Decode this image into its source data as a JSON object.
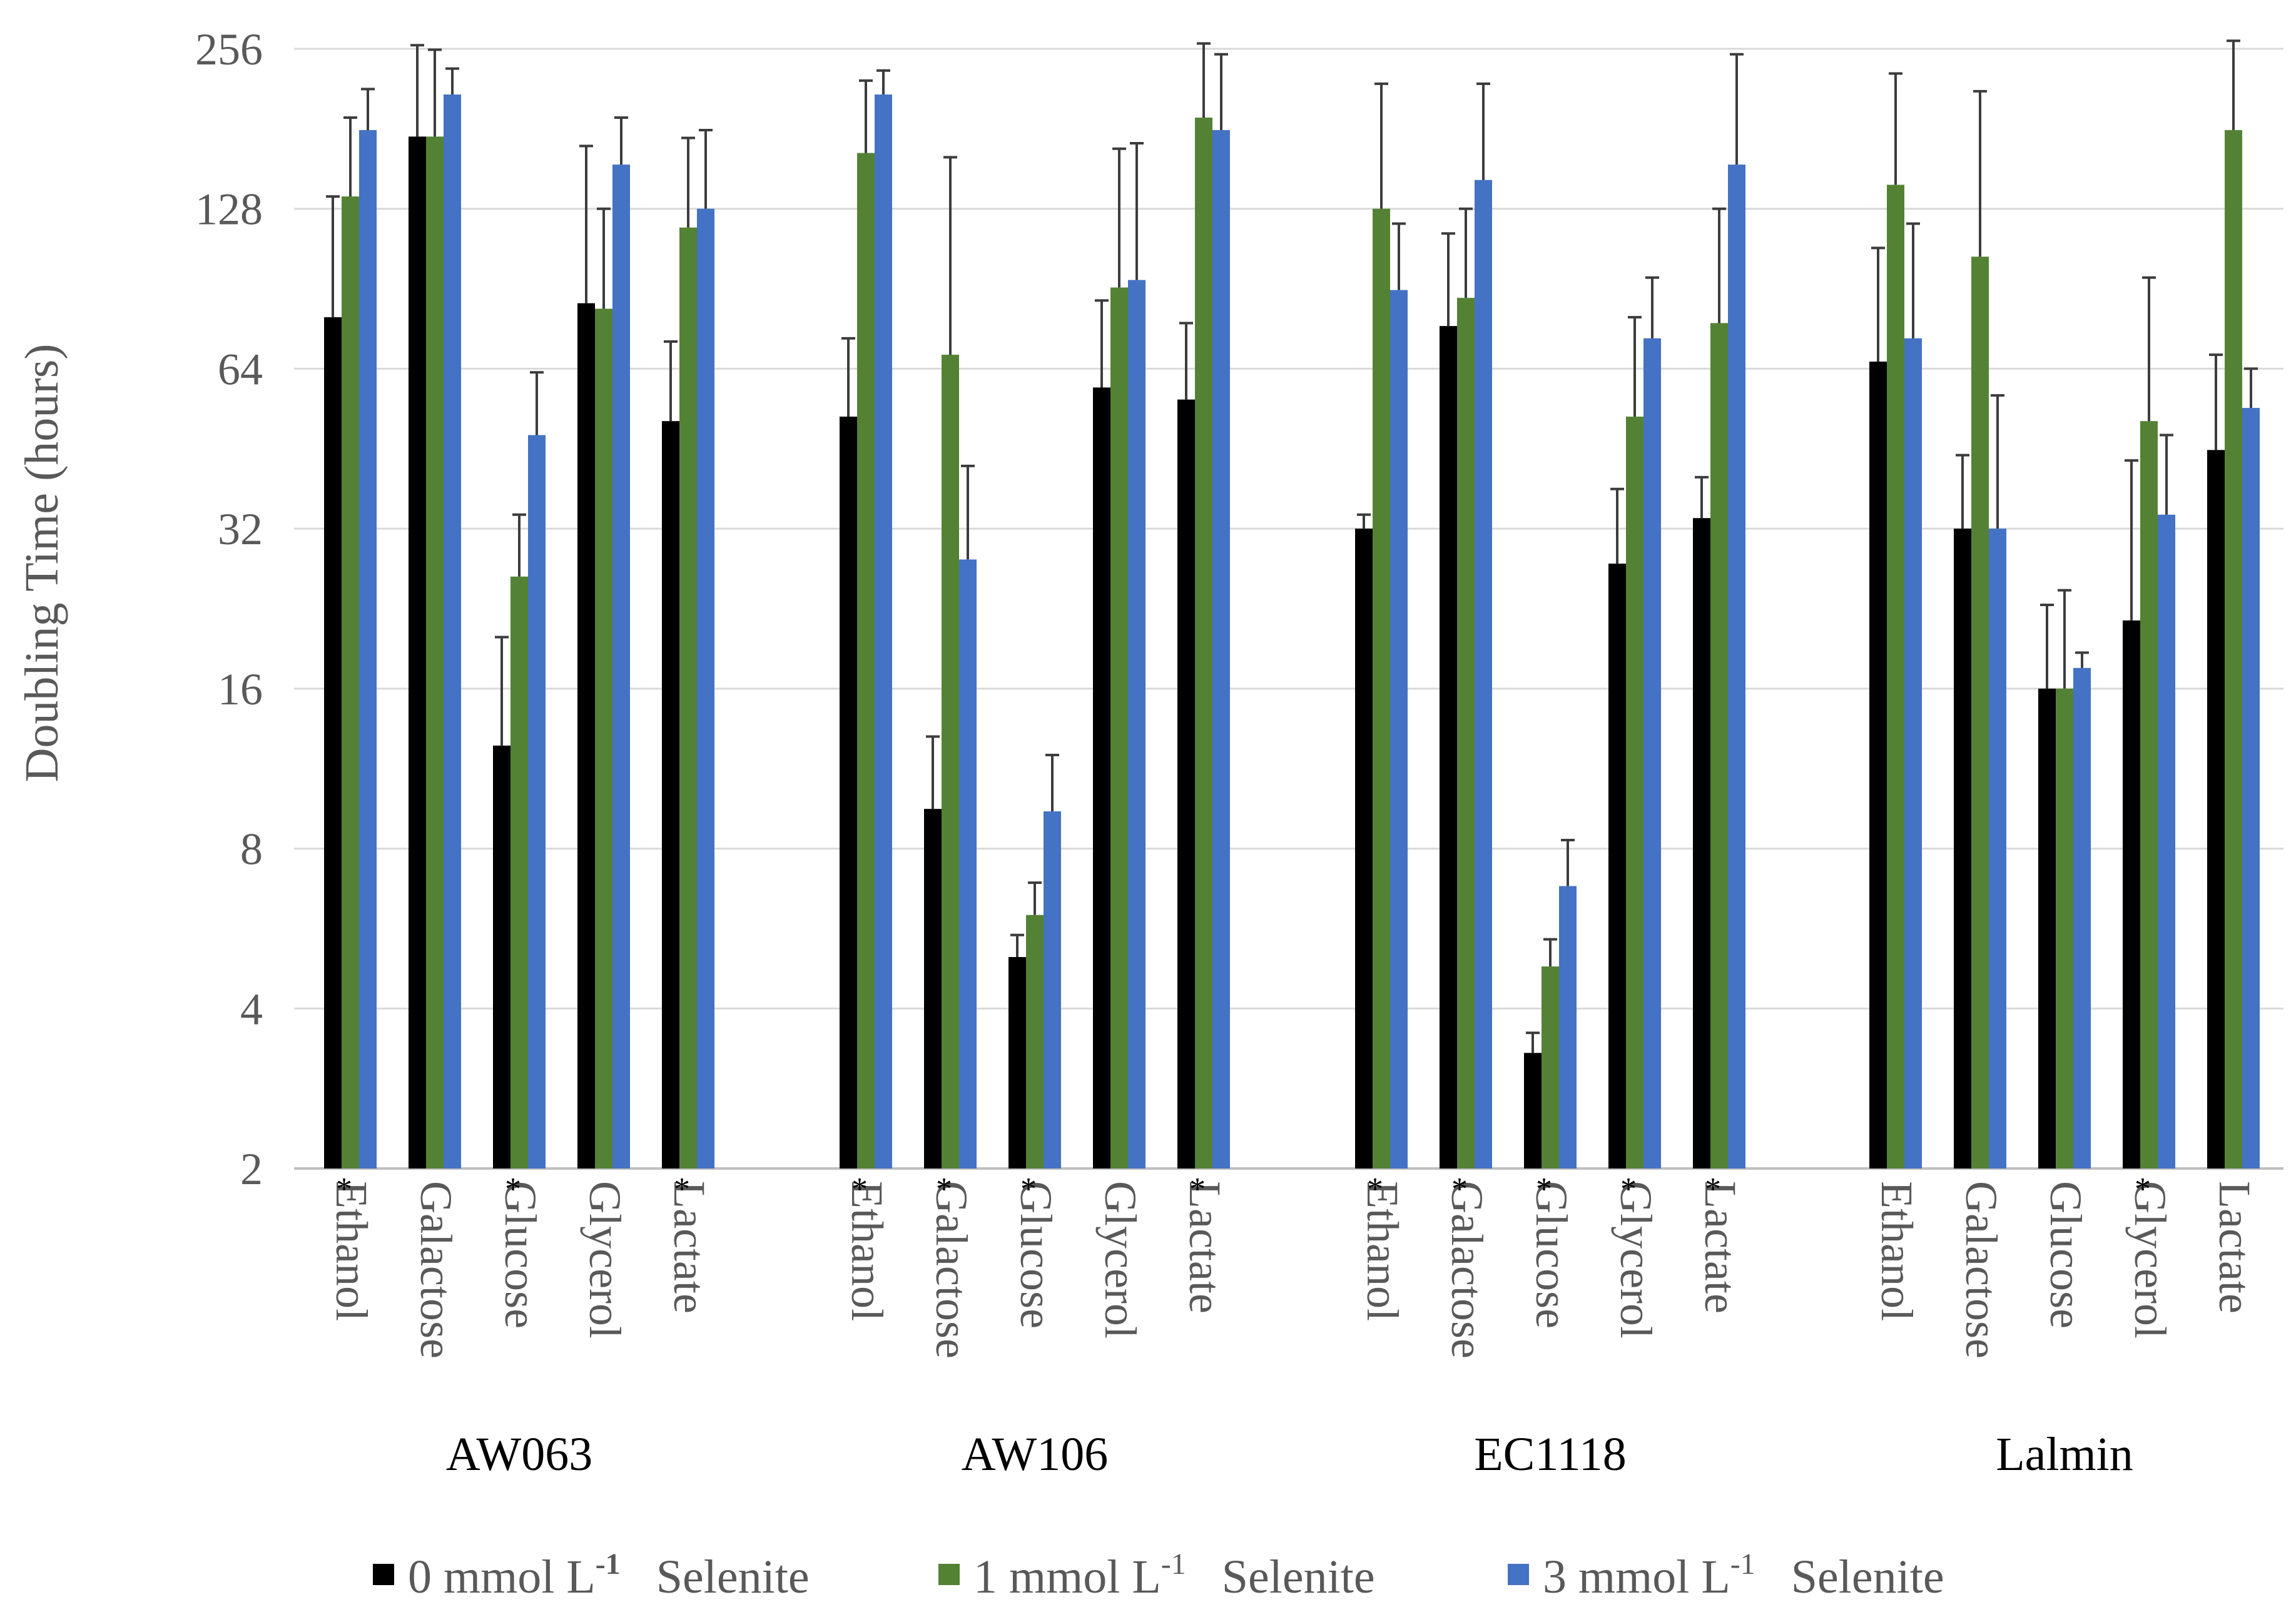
{
  "chart_data": {
    "type": "bar",
    "ylabel": "Doubling Time (hours)",
    "y_scale": "log2",
    "ylim": [
      2,
      256
    ],
    "yticks": [
      "2",
      "4",
      "8",
      "16",
      "32",
      "64",
      "128",
      "256"
    ],
    "grid": true,
    "legend_position": "bottom",
    "legend": [
      {
        "num": "0",
        "unit": "mmol L",
        "exp": "-1",
        "word": "Selenite",
        "color": "#000000"
      },
      {
        "num": "1",
        "unit": "mmol L",
        "exp": "-1",
        "word": "Selenite",
        "color": "#548235"
      },
      {
        "num": "3",
        "unit": "mmol L",
        "exp": "-1",
        "word": "Selenite",
        "color": "#4472C4"
      }
    ],
    "series_colors": [
      "#000000",
      "#548235",
      "#4472C4"
    ],
    "groups": [
      {
        "name": "AW063",
        "categories": [
          {
            "label": "Ethanol",
            "star": "*",
            "values": [
              80,
              135,
              180
            ],
            "errors": [
              [
                135,
                190,
                215
              ]
            ]
          },
          {
            "label": "Galactose",
            "star": "",
            "values": [
              175,
              175,
              210
            ],
            "errors": [
              [
                260,
                255,
                235
              ]
            ]
          },
          {
            "label": "Glucose",
            "star": "*",
            "values": [
              12.5,
              26,
              48
            ],
            "errors": [
              [
                20,
                34,
                63
              ]
            ]
          },
          {
            "label": "Glycerol",
            "star": "",
            "values": [
              85,
              83,
              155
            ],
            "errors": [
              [
                168,
                128,
                190
              ]
            ]
          },
          {
            "label": "Lactate",
            "star": "*",
            "values": [
              51,
              118,
              128
            ],
            "errors": [
              [
                72,
                174,
                180
              ]
            ]
          }
        ]
      },
      {
        "name": "AW106",
        "categories": [
          {
            "label": "Ethanol",
            "star": "*",
            "values": [
              52,
              163,
              210
            ],
            "errors": [
              [
                73,
                223,
                233
              ]
            ]
          },
          {
            "label": "Galactose",
            "star": "*",
            "values": [
              9.5,
              68,
              28
            ],
            "errors": [
              [
                13,
                160,
                42
              ]
            ]
          },
          {
            "label": "Glucose",
            "star": "*",
            "values": [
              5,
              6,
              9.4
            ],
            "errors": [
              [
                5.5,
                6.9,
                12
              ]
            ]
          },
          {
            "label": "Glycerol",
            "star": "",
            "values": [
              59,
              91,
              94
            ],
            "errors": [
              [
                86,
                166,
                170
              ]
            ]
          },
          {
            "label": "Lactate",
            "star": "*",
            "values": [
              56,
              190,
              180
            ],
            "errors": [
              [
                78,
                262,
                250
              ]
            ]
          }
        ]
      },
      {
        "name": "EC1118",
        "categories": [
          {
            "label": "Ethanol",
            "star": "*",
            "values": [
              32,
              128,
              90
            ],
            "errors": [
              [
                34,
                220,
                120
              ]
            ]
          },
          {
            "label": "Galactose",
            "star": "*",
            "values": [
              77,
              87,
              145
            ],
            "errors": [
              [
                115,
                128,
                220
              ]
            ]
          },
          {
            "label": "Glucose",
            "star": "*",
            "values": [
              3.3,
              4.8,
              6.8
            ],
            "errors": [
              [
                3.6,
                5.4,
                8.3
              ]
            ]
          },
          {
            "label": "Glycerol",
            "star": "*",
            "values": [
              27.5,
              52,
              73
            ],
            "errors": [
              [
                38,
                80,
                95
              ]
            ]
          },
          {
            "label": "Lactate",
            "star": "*",
            "values": [
              33.5,
              78,
              155
            ],
            "errors": [
              [
                40,
                128,
                250
              ]
            ]
          }
        ]
      },
      {
        "name": "Lalmin",
        "categories": [
          {
            "label": "Ethanol",
            "star": "",
            "values": [
              66,
              142,
              73
            ],
            "errors": [
              [
                108,
                230,
                120
              ]
            ]
          },
          {
            "label": "Galactose",
            "star": "",
            "values": [
              32,
              104,
              32
            ],
            "errors": [
              [
                44,
                213,
                57
              ]
            ]
          },
          {
            "label": "Glucose",
            "star": "",
            "values": [
              16,
              16,
              17.5
            ],
            "errors": [
              [
                23,
                24.5,
                18.7
              ]
            ]
          },
          {
            "label": "Glycerol",
            "star": "*",
            "values": [
              21.5,
              51,
              34
            ],
            "errors": [
              [
                43,
                95,
                48
              ]
            ]
          },
          {
            "label": "Lactate",
            "star": "",
            "values": [
              45,
              180,
              54
            ],
            "errors": [
              [
                68,
                265,
                64
              ]
            ]
          }
        ]
      }
    ]
  }
}
